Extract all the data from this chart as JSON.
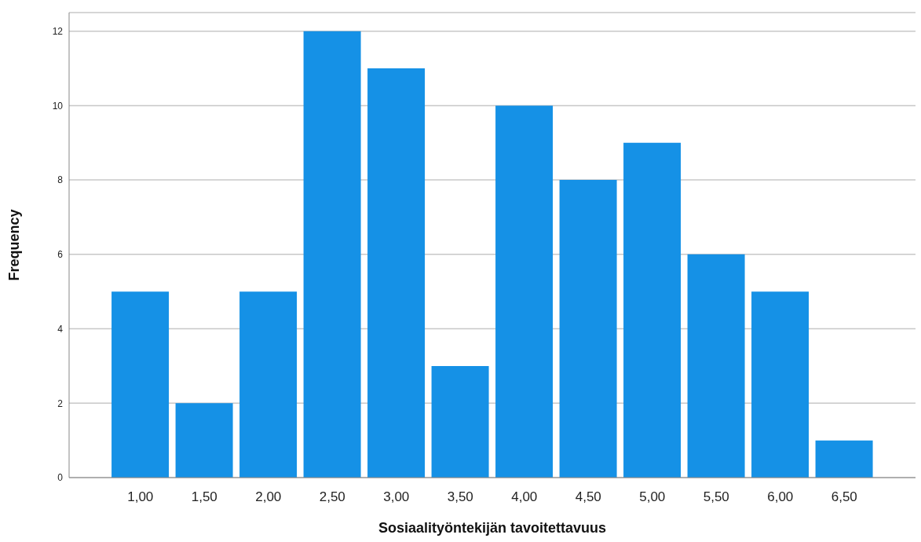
{
  "chart_data": {
    "type": "bar",
    "xlabel": "Sosiaalityöntekijän tavoitettavuus",
    "ylabel": "Frequency",
    "categories": [
      "1,00",
      "1,50",
      "2,00",
      "2,50",
      "3,00",
      "3,50",
      "4,00",
      "4,50",
      "5,00",
      "5,50",
      "6,00",
      "6,50"
    ],
    "values": [
      5,
      2,
      5,
      12,
      11,
      3,
      10,
      8,
      9,
      6,
      5,
      1
    ],
    "color": "#1591e6",
    "ylim": [
      0,
      12.5
    ],
    "yticks": [
      0,
      2,
      4,
      6,
      8,
      10,
      12
    ],
    "grid": "y"
  }
}
